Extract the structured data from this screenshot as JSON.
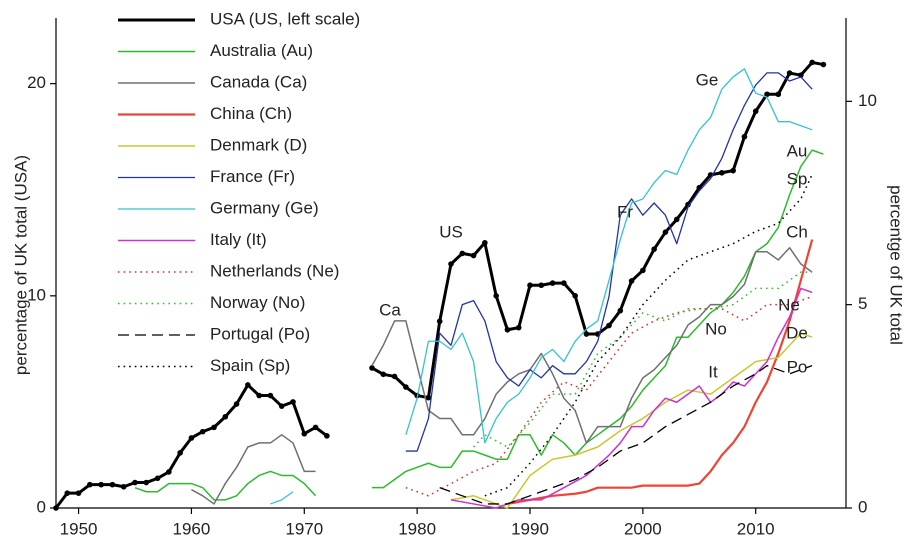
{
  "chart_data": {
    "type": "line",
    "y_label": "percentage of UK total  (USA)",
    "y2_label": "percentge of UK total",
    "xlim": [
      1948,
      2018
    ],
    "xticks": [
      1950,
      1960,
      1970,
      1980,
      1990,
      2000,
      2010
    ],
    "ylim": [
      0,
      23
    ],
    "yticks": [
      0,
      10,
      20
    ],
    "y2lim": [
      0,
      12
    ],
    "y2ticks": [
      0,
      5,
      10
    ],
    "legend": "upper left",
    "series": [
      {
        "name": "USA (US, left scale)",
        "color": "#000000",
        "axis": "y",
        "style": "solid",
        "width": 3,
        "marker": true,
        "x": [
          1948,
          1949,
          1950,
          1951,
          1952,
          1953,
          1954,
          1955,
          1956,
          1957,
          1958,
          1959,
          1960,
          1961,
          1962,
          1963,
          1964,
          1965,
          1966,
          1967,
          1968,
          1969,
          1970,
          1971,
          1972,
          1974,
          1976,
          1977,
          1978,
          1979,
          1980,
          1981,
          1982,
          1983,
          1984,
          1985,
          1986,
          1987,
          1988,
          1989,
          1990,
          1991,
          1992,
          1993,
          1994,
          1995,
          1996,
          1997,
          1998,
          1999,
          2000,
          2001,
          2002,
          2003,
          2004,
          2005,
          2006,
          2007,
          2008,
          2009,
          2010,
          2011,
          2012,
          2013,
          2014,
          2015,
          2016
        ],
        "values": [
          0,
          0.7,
          0.7,
          1.1,
          1.1,
          1.1,
          1.0,
          1.2,
          1.2,
          1.4,
          1.7,
          2.6,
          3.3,
          3.6,
          3.8,
          4.3,
          4.9,
          5.8,
          5.3,
          5.3,
          4.8,
          5.0,
          3.5,
          3.8,
          3.4,
          null,
          6.6,
          6.3,
          6.2,
          5.7,
          5.3,
          5.2,
          8.8,
          11.5,
          12.0,
          11.9,
          12.5,
          10.0,
          8.4,
          8.5,
          10.5,
          10.5,
          10.6,
          10.6,
          10.0,
          8.2,
          8.2,
          8.6,
          9.3,
          10.7,
          11.2,
          12.2,
          13.0,
          13.6,
          14.3,
          15.1,
          15.7,
          15.8,
          15.9,
          17.5,
          18.7,
          19.5,
          19.5,
          20.5,
          20.4,
          21.0,
          20.9
        ]
      },
      {
        "name": "Australia (Au)",
        "color": "#2dbb2d",
        "axis": "y2",
        "style": "solid",
        "width": 1.5,
        "x": [
          1955,
          1956,
          1957,
          1958,
          1959,
          1960,
          1961,
          1962,
          1963,
          1964,
          1965,
          1966,
          1967,
          1968,
          1969,
          1970,
          1971,
          1973,
          1976,
          1977,
          1978,
          1979,
          1980,
          1981,
          1982,
          1983,
          1984,
          1985,
          1986,
          1987,
          1988,
          1989,
          1990,
          1991,
          1992,
          1993,
          1994,
          1995,
          1996,
          1997,
          1998,
          1999,
          2000,
          2001,
          2002,
          2003,
          2004,
          2005,
          2006,
          2007,
          2008,
          2009,
          2010,
          2011,
          2012,
          2013,
          2014,
          2015,
          2016
        ],
        "values": [
          0.5,
          0.4,
          0.4,
          0.6,
          0.6,
          0.6,
          0.5,
          0.2,
          0.2,
          0.3,
          0.6,
          0.8,
          0.9,
          0.8,
          0.8,
          0.6,
          0.3,
          null,
          0.5,
          0.5,
          0.7,
          0.9,
          1.0,
          1.1,
          1.0,
          1.0,
          1.4,
          1.4,
          1.3,
          1.2,
          1.2,
          1.8,
          1.8,
          1.3,
          1.8,
          1.6,
          1.3,
          1.6,
          1.8,
          2.0,
          2.2,
          2.5,
          2.9,
          3.2,
          3.5,
          4.2,
          4.2,
          4.5,
          4.8,
          5.0,
          5.3,
          5.7,
          6.3,
          6.5,
          6.9,
          7.7,
          8.4,
          8.8,
          8.7
        ]
      },
      {
        "name": "Canada (Ca)",
        "color": "#707070",
        "axis": "y2",
        "style": "solid",
        "width": 1.5,
        "x": [
          1960,
          1961,
          1962,
          1963,
          1964,
          1965,
          1966,
          1967,
          1968,
          1969,
          1970,
          1971,
          1973,
          1976,
          1977,
          1978,
          1979,
          1980,
          1981,
          1982,
          1983,
          1984,
          1985,
          1986,
          1987,
          1988,
          1989,
          1990,
          1991,
          1992,
          1993,
          1994,
          1995,
          1996,
          1997,
          1998,
          1999,
          2000,
          2001,
          2002,
          2003,
          2004,
          2005,
          2006,
          2007,
          2008,
          2009,
          2010,
          2011,
          2012,
          2013,
          2014,
          2015
        ],
        "values": [
          0.45,
          0.3,
          0.1,
          0.6,
          1.0,
          1.5,
          1.6,
          1.6,
          1.8,
          1.6,
          0.9,
          0.9,
          null,
          3.5,
          4.0,
          4.6,
          4.6,
          3.5,
          2.4,
          2.2,
          2.2,
          1.8,
          1.8,
          2.2,
          2.8,
          3.1,
          3.3,
          3.4,
          3.8,
          3.3,
          2.7,
          2.4,
          1.6,
          2.0,
          2.0,
          2.0,
          2.7,
          3.2,
          3.4,
          3.7,
          4.0,
          4.5,
          4.7,
          5.0,
          5.0,
          5.2,
          5.5,
          6.3,
          6.3,
          6.1,
          6.4,
          6.0,
          5.8
        ]
      },
      {
        "name": "China (Ch)",
        "color": "#ee4433",
        "axis": "y2",
        "style": "solid",
        "width": 2.2,
        "x": [
          1988,
          1990,
          1992,
          1994,
          1995,
          1996,
          1997,
          1998,
          1999,
          2000,
          2001,
          2002,
          2003,
          2004,
          2005,
          2006,
          2007,
          2008,
          2009,
          2010,
          2011,
          2012,
          2013,
          2014,
          2015
        ],
        "values": [
          0.1,
          0.2,
          0.3,
          0.35,
          0.4,
          0.5,
          0.5,
          0.5,
          0.5,
          0.55,
          0.55,
          0.55,
          0.55,
          0.55,
          0.6,
          0.9,
          1.3,
          1.6,
          2.0,
          2.6,
          3.1,
          3.8,
          4.6,
          5.6,
          6.6
        ]
      },
      {
        "name": "Denmark (D)",
        "color": "#c8c830",
        "axis": "y2",
        "style": "solid",
        "width": 1.5,
        "x": [
          1983,
          1985,
          1987,
          1988,
          1990,
          1992,
          1994,
          1996,
          1998,
          2000,
          2002,
          2004,
          2006,
          2008,
          2010,
          2012,
          2014,
          2015
        ],
        "values": [
          0.2,
          0.3,
          0.1,
          0.0,
          0.8,
          1.2,
          1.3,
          1.5,
          1.9,
          2.2,
          2.6,
          2.9,
          2.8,
          3.2,
          3.6,
          3.7,
          4.3,
          4.2
        ]
      },
      {
        "name": "France (Fr)",
        "color": "#2233aa",
        "axis": "y2",
        "style": "solid",
        "width": 1.3,
        "x": [
          1979,
          1980,
          1981,
          1982,
          1983,
          1984,
          1985,
          1986,
          1987,
          1988,
          1989,
          1990,
          1991,
          1992,
          1993,
          1994,
          1995,
          1996,
          1997,
          1998,
          1999,
          2000,
          2001,
          2002,
          2003,
          2004,
          2005,
          2006,
          2007,
          2008,
          2009,
          2010,
          2011,
          2012,
          2013,
          2014,
          2015
        ],
        "values": [
          1.4,
          1.4,
          2.2,
          4.3,
          4.0,
          5.0,
          5.1,
          4.6,
          3.6,
          3.2,
          3.0,
          3.4,
          3.2,
          3.5,
          3.3,
          3.3,
          3.6,
          4.1,
          5.2,
          7.2,
          7.6,
          7.2,
          7.5,
          7.2,
          6.5,
          7.4,
          7.8,
          8.1,
          8.6,
          9.3,
          9.9,
          10.4,
          10.7,
          10.7,
          10.5,
          10.6,
          10.3
        ]
      },
      {
        "name": "Germany (Ge)",
        "color": "#33c4cc",
        "axis": "y2",
        "style": "solid",
        "width": 1.3,
        "x": [
          1967,
          1968,
          1969,
          1974,
          1979,
          1980,
          1981,
          1982,
          1983,
          1984,
          1985,
          1986,
          1987,
          1988,
          1989,
          1990,
          1991,
          1992,
          1993,
          1994,
          1995,
          1996,
          1997,
          1998,
          1999,
          2000,
          2001,
          2002,
          2003,
          2004,
          2005,
          2006,
          2007,
          2008,
          2009,
          2010,
          2011,
          2012,
          2013,
          2014,
          2015
        ],
        "values": [
          0.1,
          0.2,
          0.4,
          null,
          1.8,
          2.7,
          4.1,
          4.1,
          3.9,
          4.3,
          3.6,
          1.6,
          2.2,
          2.6,
          2.8,
          3.2,
          3.7,
          3.9,
          3.6,
          4.1,
          4.4,
          4.6,
          5.6,
          6.6,
          7.5,
          7.6,
          8.0,
          8.3,
          8.2,
          8.8,
          9.3,
          9.6,
          10.3,
          10.6,
          10.8,
          10.2,
          10.1,
          9.5,
          9.5,
          9.4,
          9.3
        ]
      },
      {
        "name": "Italy (It)",
        "color": "#d030d0",
        "axis": "y2",
        "style": "solid",
        "width": 1.5,
        "x": [
          1983,
          1985,
          1987,
          1989,
          1991,
          1993,
          1995,
          1997,
          1998,
          1999,
          2000,
          2001,
          2002,
          2003,
          2004,
          2005,
          2006,
          2007,
          2008,
          2009,
          2010,
          2011,
          2012,
          2013,
          2014,
          2015
        ],
        "values": [
          0.2,
          0.1,
          0.0,
          0.2,
          0.2,
          0.5,
          0.8,
          1.3,
          1.6,
          2.0,
          2.0,
          2.4,
          2.7,
          2.6,
          2.8,
          3.0,
          2.6,
          2.8,
          3.1,
          3.0,
          3.3,
          3.6,
          4.2,
          4.7,
          5.4,
          5.3
        ]
      },
      {
        "name": "Netherlands (Ne)",
        "color": "#d83030",
        "axis": "y2",
        "style": "dotted",
        "width": 1.5,
        "x": [
          1979,
          1981,
          1983,
          1985,
          1987,
          1989,
          1991,
          1993,
          1995,
          1997,
          1999,
          2001,
          2003,
          2005,
          2007,
          2009,
          2011,
          2013,
          2015
        ],
        "values": [
          0.5,
          0.3,
          0.6,
          0.9,
          1.1,
          1.8,
          2.6,
          3.1,
          2.9,
          3.6,
          4.3,
          4.6,
          4.8,
          4.9,
          4.9,
          4.6,
          5.0,
          5.0,
          5.2
        ]
      },
      {
        "name": "Norway (No)",
        "color": "#30c030",
        "axis": "y2",
        "style": "dotted",
        "width": 1.5,
        "x": [
          1985,
          1986,
          1988,
          1990,
          1992,
          1994,
          1996,
          1998,
          2000,
          2002,
          2004,
          2006,
          2008,
          2010,
          2012,
          2014,
          2015
        ],
        "values": [
          1.5,
          1.8,
          1.5,
          2.1,
          2.8,
          2.8,
          3.8,
          4.2,
          4.8,
          4.6,
          4.9,
          4.9,
          5.0,
          5.4,
          5.4,
          5.8,
          5.8
        ]
      },
      {
        "name": "Portugal (Po)",
        "color": "#000000",
        "axis": "y2",
        "style": "dashed",
        "width": 1.3,
        "x": [
          1982,
          1984,
          1986,
          1988,
          1990,
          1992,
          1994,
          1996,
          1998,
          2000,
          2002,
          2004,
          2006,
          2008,
          2010,
          2011,
          2013,
          2015
        ],
        "values": [
          0.5,
          0.3,
          0.1,
          0.1,
          0.3,
          0.5,
          0.7,
          1.0,
          1.4,
          1.6,
          2.0,
          2.3,
          2.6,
          3.0,
          3.3,
          3.5,
          3.3,
          3.5
        ]
      },
      {
        "name": "Spain (Sp)",
        "color": "#000000",
        "axis": "y2",
        "style": "dotted",
        "width": 1.5,
        "x": [
          1986,
          1988,
          1990,
          1992,
          1994,
          1996,
          1998,
          2000,
          2002,
          2004,
          2006,
          2008,
          2010,
          2012,
          2014,
          2015
        ],
        "values": [
          0.3,
          0.5,
          1.1,
          1.8,
          2.6,
          3.6,
          4.2,
          5.0,
          5.6,
          6.1,
          6.3,
          6.5,
          6.8,
          7.0,
          7.6,
          8.2
        ]
      }
    ],
    "annotations": [
      "US",
      "Ca",
      "Fr",
      "Ge",
      "Au",
      "Sp",
      "Ch",
      "Ne",
      "No",
      "De",
      "Po",
      "It"
    ]
  }
}
